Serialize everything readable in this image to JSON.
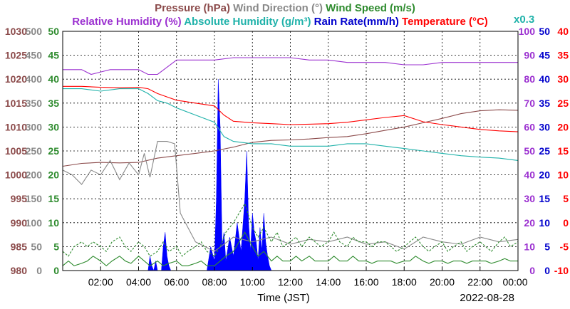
{
  "chart_data": {
    "type": "line",
    "date_label": "2022-08-28",
    "xlabel": "Time (JST)",
    "x_tick_labels": [
      "02:00",
      "04:00",
      "06:00",
      "08:00",
      "10:00",
      "12:00",
      "14:00",
      "16:00",
      "18:00",
      "20:00",
      "22:00",
      "00:00"
    ],
    "x_range_hours": [
      0,
      24
    ],
    "grid": true,
    "legend_row1": [
      {
        "text": "Pressure (hPa)",
        "color": "#8b4a4a"
      },
      {
        "text": "Wind Direction (°)",
        "color": "#888888"
      },
      {
        "text": "Wind Speed (m/s)",
        "color": "#2e8b2e"
      }
    ],
    "legend_row2": [
      {
        "text": "Relative Humidity (%)",
        "color": "#9b30d0"
      },
      {
        "text": "Absolute Humidity (g/m³)",
        "color": "#20b2aa"
      },
      {
        "text": "Rain Rate(mm/h)",
        "color": "#0000cc"
      },
      {
        "text": "Temperature (°C)",
        "color": "#ff0000"
      }
    ],
    "rain_scale_note": "x0.3",
    "axes": {
      "pressure": {
        "color": "#8b4a4a",
        "ylim": [
          980,
          1030
        ],
        "ticks": [
          "980",
          "985",
          "990",
          "995",
          "1000",
          "1005",
          "1010",
          "1015",
          "1020",
          "1025",
          "1030"
        ]
      },
      "wind_direction": {
        "color": "#888888",
        "ylim": [
          0,
          500
        ],
        "ticks": [
          "0",
          "50",
          "100",
          "150",
          "200",
          "250",
          "300",
          "350",
          "400",
          "450",
          "500"
        ]
      },
      "wind_speed": {
        "color": "#2e8b2e",
        "ylim": [
          0,
          50
        ],
        "ticks": [
          "0",
          "5",
          "10",
          "15",
          "20",
          "25",
          "30",
          "35",
          "40",
          "45",
          "50"
        ]
      },
      "relative_humidity": {
        "color": "#9b30d0",
        "ylim": [
          0,
          100
        ],
        "ticks": [
          "0",
          "10",
          "20",
          "30",
          "40",
          "50",
          "60",
          "70",
          "80",
          "90",
          "100"
        ]
      },
      "rain_rate": {
        "color": "#0000cc",
        "ylim": [
          0,
          50
        ],
        "ticks": [
          "0",
          "5",
          "10",
          "15",
          "20",
          "25",
          "30",
          "35",
          "40",
          "45",
          "50"
        ]
      },
      "temperature": {
        "color": "#ff0000",
        "ylim": [
          -10,
          40
        ],
        "ticks": [
          "-10",
          "-5",
          "0",
          "5",
          "10",
          "15",
          "20",
          "25",
          "30",
          "35",
          "40"
        ]
      }
    },
    "series": [
      {
        "name": "Pressure (hPa)",
        "axis": "pressure",
        "color": "#8b4a4a",
        "x": [
          0,
          1,
          2,
          3,
          4,
          5,
          6,
          7,
          8,
          9,
          10,
          11,
          12,
          13,
          14,
          15,
          16,
          17,
          18,
          19,
          20,
          21,
          22,
          23,
          24
        ],
        "y": [
          1001.8,
          1002.4,
          1002.6,
          1002.5,
          1002.6,
          1003.5,
          1004.0,
          1004.5,
          1005.0,
          1005.8,
          1006.8,
          1007.2,
          1007.3,
          1007.5,
          1007.8,
          1008.0,
          1008.6,
          1009.3,
          1010.0,
          1010.9,
          1011.8,
          1012.8,
          1013.4,
          1013.6,
          1013.5
        ]
      },
      {
        "name": "Wind Direction (°)",
        "axis": "wind_direction",
        "color": "#888888",
        "x": [
          0,
          0.5,
          1,
          1.5,
          2,
          2.5,
          3,
          3.5,
          4,
          4.3,
          4.6,
          5,
          5.5,
          5.9,
          6.2,
          7,
          8,
          9,
          10,
          11,
          12,
          13,
          14,
          15,
          16,
          17,
          18,
          19,
          20,
          21,
          22,
          23,
          24
        ],
        "y": [
          210,
          200,
          180,
          210,
          200,
          230,
          190,
          225,
          200,
          245,
          195,
          270,
          270,
          265,
          120,
          60,
          40,
          70,
          60,
          70,
          55,
          65,
          60,
          70,
          55,
          60,
          45,
          70,
          60,
          55,
          70,
          60,
          65
        ]
      },
      {
        "name": "Relative Humidity (%)",
        "axis": "relative_humidity",
        "color": "#9b30d0",
        "x": [
          0,
          0.5,
          1,
          1.5,
          2,
          2.5,
          3,
          3.5,
          4,
          4.5,
          5,
          5.5,
          6,
          7,
          8,
          9,
          10,
          11,
          12,
          13,
          14,
          15,
          16,
          17,
          18,
          19,
          20,
          21,
          22,
          23,
          24
        ],
        "y": [
          84,
          84,
          84,
          82,
          83,
          84,
          84,
          84,
          84,
          82,
          82,
          85,
          88,
          88,
          88,
          89,
          89,
          89,
          89,
          88,
          88,
          87,
          87,
          87,
          86,
          86,
          87,
          87,
          87,
          87,
          87
        ]
      },
      {
        "name": "Absolute Humidity (g/m³)",
        "axis": "temperature",
        "color": "#20b2aa",
        "x": [
          0,
          1,
          2,
          3,
          4,
          4.5,
          5,
          5.5,
          6,
          7,
          8,
          8.5,
          9,
          10,
          11,
          12,
          13,
          14,
          15,
          16,
          17,
          18,
          19,
          20,
          21,
          22,
          23,
          24
        ],
        "y": [
          28,
          28,
          27.5,
          28,
          28,
          27,
          25.5,
          25,
          24,
          22.5,
          21,
          18,
          17,
          16.5,
          16.5,
          16,
          16,
          16,
          16.5,
          16.5,
          16,
          15.5,
          15,
          14.5,
          14,
          13.7,
          13.5,
          13
        ]
      },
      {
        "name": "Temperature (°C)",
        "axis": "temperature",
        "color": "#ff0000",
        "x": [
          0,
          1,
          2,
          3,
          4,
          4.5,
          5,
          5.5,
          6,
          7,
          8,
          8.5,
          9,
          10,
          11,
          12,
          13,
          14,
          15,
          16,
          17,
          18,
          19,
          20,
          21,
          22,
          23,
          24
        ],
        "y": [
          28.5,
          28.5,
          28.3,
          28.2,
          28.3,
          28.0,
          27.0,
          26.3,
          25.6,
          25.0,
          24.4,
          22.5,
          21.2,
          20.9,
          20.7,
          20.5,
          20.6,
          20.7,
          21.0,
          21.5,
          22.0,
          22.4,
          21.1,
          20.5,
          20.0,
          19.5,
          19.2,
          19.0
        ]
      },
      {
        "name": "Wind Speed (m/s)",
        "axis": "wind_speed",
        "color": "#2e8b2e",
        "x": [
          0,
          0.3,
          0.6,
          1,
          1.3,
          1.6,
          2,
          2.3,
          2.6,
          3,
          3.3,
          3.6,
          4,
          4.3,
          4.6,
          5,
          5.3,
          5.6,
          6,
          6.3,
          6.6,
          7,
          7.3,
          7.6,
          8,
          8.3,
          8.6,
          9,
          9.3,
          9.6,
          10,
          10.3,
          10.6,
          11,
          11.3,
          11.6,
          12,
          12.3,
          12.6,
          13,
          13.3,
          13.6,
          14,
          14.3,
          14.6,
          15,
          15.3,
          15.6,
          16,
          16.3,
          16.6,
          17,
          17.3,
          17.6,
          18,
          18.3,
          18.6,
          19,
          19.3,
          19.6,
          20,
          20.3,
          20.6,
          21,
          21.3,
          21.6,
          22,
          22.3,
          22.6,
          23,
          23.3,
          23.6,
          24
        ],
        "y": [
          1,
          2,
          1,
          1.5,
          2,
          3,
          2,
          1,
          2,
          3,
          2,
          1.5,
          3,
          2,
          1,
          2,
          1,
          1.5,
          2,
          1,
          1,
          1.5,
          2,
          1,
          1,
          2,
          3,
          4,
          6,
          8,
          5,
          3,
          4,
          2,
          3,
          2,
          2,
          3,
          2,
          3,
          2,
          2,
          2,
          3,
          2,
          2,
          3,
          2,
          2,
          1.5,
          2,
          2,
          2,
          1.5,
          2,
          2,
          3,
          2,
          1.5,
          2,
          2,
          1.5,
          2,
          2,
          1.5,
          2,
          2,
          2,
          1.5,
          2,
          2.5,
          2,
          2
        ]
      },
      {
        "name": "Wind Speed gust",
        "axis": "wind_speed",
        "color": "#2e8b2e",
        "dashed": true,
        "x": [
          0,
          0.3,
          0.6,
          1,
          1.3,
          1.6,
          2,
          2.3,
          2.6,
          3,
          3.3,
          3.6,
          4,
          4.3,
          4.6,
          5,
          5.3,
          5.6,
          6,
          6.3,
          6.6,
          7,
          7.3,
          7.6,
          8,
          8.3,
          8.6,
          9,
          9.3,
          9.6,
          10,
          10.3,
          10.6,
          11,
          11.3,
          11.6,
          12,
          12.3,
          12.6,
          13,
          13.3,
          13.6,
          14,
          14.3,
          14.6,
          15,
          15.3,
          15.6,
          16,
          16.3,
          16.6,
          17,
          17.3,
          17.6,
          18,
          18.3,
          18.6,
          19,
          19.3,
          19.6,
          20,
          20.3,
          20.6,
          21,
          21.3,
          21.6,
          22,
          22.3,
          22.6,
          23,
          23.3,
          23.6,
          24
        ],
        "y": [
          4,
          3,
          5,
          6,
          5,
          6,
          5,
          4,
          6,
          7,
          5,
          4,
          6,
          5,
          3,
          4,
          6,
          4,
          5,
          3,
          4,
          5,
          6,
          4,
          3,
          5,
          8,
          10,
          12,
          14,
          9,
          7,
          9,
          6,
          8,
          5,
          6,
          7,
          5,
          7,
          6,
          5,
          6,
          8,
          6,
          5,
          7,
          6,
          6,
          5,
          6,
          6,
          5,
          4,
          5,
          6,
          7,
          5,
          4,
          5,
          6,
          4,
          5,
          6,
          4,
          5,
          6,
          5,
          4,
          6,
          7,
          5,
          6
        ]
      }
    ],
    "rain": {
      "name": "Rain Rate(mm/h)",
      "axis": "rain_rate",
      "color": "#0000ff",
      "x": [
        4.5,
        4.6,
        4.7,
        4.8,
        4.9,
        5.0,
        5.2,
        5.3,
        5.4,
        5.5,
        5.6,
        5.7,
        7.6,
        7.8,
        8.0,
        8.1,
        8.2,
        8.3,
        8.4,
        8.5,
        8.6,
        8.8,
        9.0,
        9.2,
        9.4,
        9.6,
        9.7,
        9.8,
        9.9,
        10.0,
        10.1,
        10.2,
        10.3,
        10.4,
        10.5,
        10.6,
        10.7,
        10.8,
        10.9,
        11.0
      ],
      "y": [
        0,
        3,
        1,
        0,
        2,
        0,
        0,
        5,
        8,
        3,
        1,
        0,
        0,
        5,
        2,
        15,
        40,
        30,
        5,
        8,
        2,
        7,
        3,
        10,
        4,
        15,
        25,
        10,
        4,
        12,
        8,
        6,
        2,
        9,
        4,
        12,
        6,
        3,
        1,
        0
      ]
    }
  }
}
